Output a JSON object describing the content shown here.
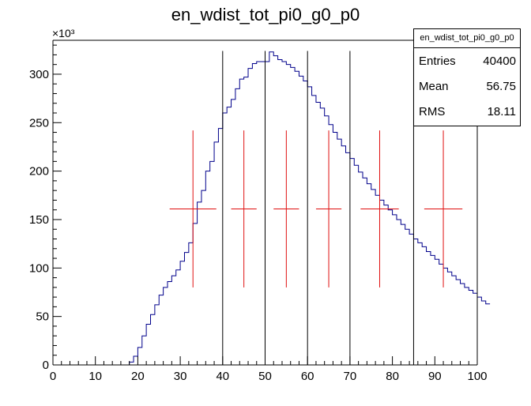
{
  "chart_data": {
    "type": "histogram",
    "title": "en_wdist_tot_pi0_g0_p0",
    "xlabel": "",
    "ylabel": "",
    "y_multiplier": "×10³",
    "xlim": [
      0,
      100
    ],
    "ylim": [
      0,
      335
    ],
    "x_ticks": [
      0,
      10,
      20,
      30,
      40,
      50,
      60,
      70,
      80,
      90,
      100
    ],
    "y_ticks": [
      0,
      50,
      100,
      150,
      200,
      250,
      300
    ],
    "bin_width": 1,
    "bins_x_start": 0,
    "histogram_values_thousands": [
      0,
      0,
      0,
      0,
      0,
      0,
      0,
      0,
      0,
      0,
      0,
      0,
      0,
      0,
      0,
      0,
      0,
      0,
      3,
      9,
      18,
      30,
      42,
      52,
      62,
      72,
      80,
      86,
      92,
      98,
      107,
      116,
      126,
      146,
      168,
      180,
      200,
      210,
      230,
      244,
      260,
      266,
      274,
      285,
      295,
      297,
      306,
      311,
      313,
      313,
      313,
      323,
      319,
      315,
      313,
      310,
      307,
      303,
      298,
      293,
      287,
      278,
      271,
      265,
      257,
      248,
      240,
      233,
      226,
      219,
      213,
      206,
      199,
      193,
      187,
      181,
      175,
      170,
      165,
      160,
      155,
      150,
      145,
      140,
      135,
      130,
      126,
      122,
      117,
      113,
      109,
      104,
      100,
      96,
      92,
      88,
      84,
      80,
      77,
      74,
      70,
      66,
      63
    ],
    "vertical_lines_x": [
      40,
      50,
      60,
      70,
      85,
      100
    ],
    "red_points": [
      {
        "x": 33,
        "y": 161,
        "xerr": 5.5,
        "yerr": 81
      },
      {
        "x": 45,
        "y": 161,
        "xerr": 3.0,
        "yerr": 81
      },
      {
        "x": 55,
        "y": 161,
        "xerr": 3.0,
        "yerr": 81
      },
      {
        "x": 65,
        "y": 161,
        "xerr": 3.0,
        "yerr": 81
      },
      {
        "x": 77,
        "y": 161,
        "xerr": 4.5,
        "yerr": 81
      },
      {
        "x": 92,
        "y": 161,
        "xerr": 4.5,
        "yerr": 81
      }
    ],
    "colors": {
      "histogram": "#00008b",
      "points": "#e01010",
      "lines": "#000000"
    }
  },
  "stats_box": {
    "title": "en_wdist_tot_pi0_g0_p0",
    "entries_label": "Entries",
    "entries_value": "40400",
    "mean_label": "Mean",
    "mean_value": "56.75",
    "rms_label": "RMS",
    "rms_value": "18.11"
  }
}
